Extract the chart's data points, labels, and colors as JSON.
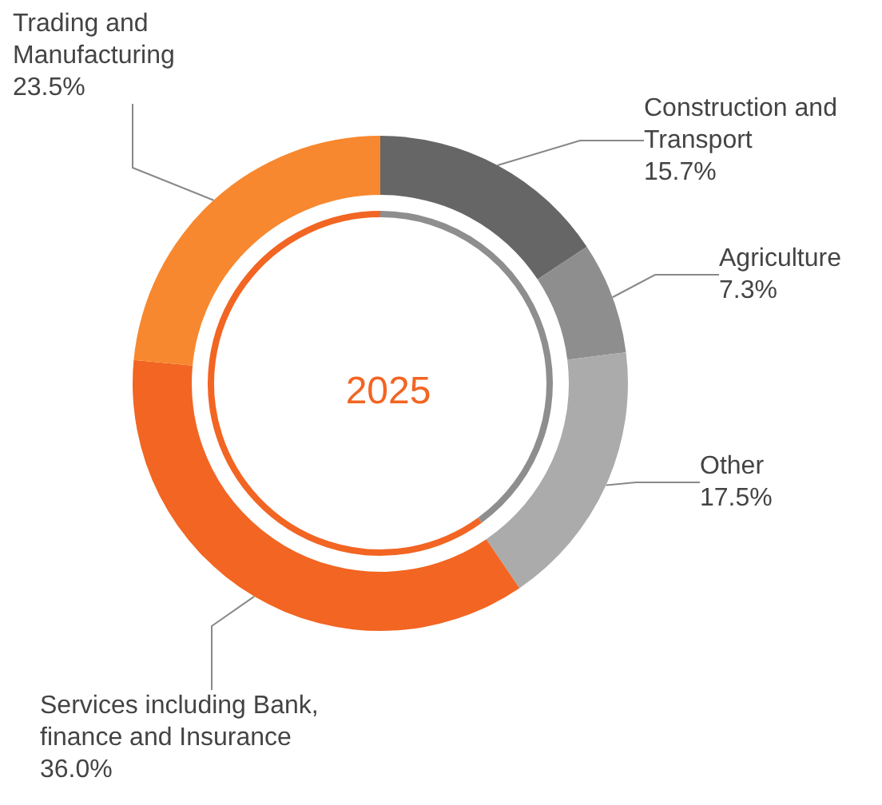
{
  "chart_data": {
    "type": "donut",
    "title": "2025",
    "categories": [
      "Construction and Transport",
      "Agriculture",
      "Other",
      "Services including Bank, finance and Insurance",
      "Trading and Manufacturing"
    ],
    "values": [
      15.7,
      7.3,
      17.5,
      36.0,
      23.5
    ],
    "colors": [
      "#666666",
      "#8e8e8e",
      "#ababab",
      "#f26522",
      "#f7882f"
    ],
    "value_labels": [
      "15.7%",
      "7.3%",
      "17.5%",
      "36.0%",
      "23.5%"
    ],
    "legend": false
  }
}
